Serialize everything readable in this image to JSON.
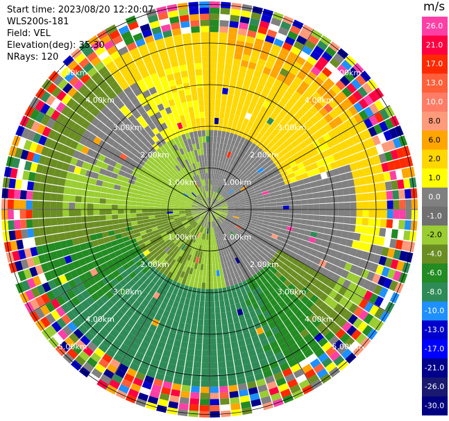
{
  "header": {
    "start_time": "Start time: 2023/08/20 12:20:07",
    "instrument": "WLS200s-181",
    "field": "Field: VEL",
    "elevation": "Elevation(deg): 35.30",
    "nrays": "NRays: 120"
  },
  "colorbar": {
    "title": "m/s",
    "levels": [
      "26.0",
      "21.0",
      "17.0",
      "13.0",
      "10.0",
      "8.0",
      "6.0",
      "2.0",
      "1.0",
      "0.0",
      "-1.0",
      "-2.0",
      "-4.0",
      "-6.0",
      "-8.0",
      "-10.0",
      "-13.0",
      "-17.0",
      "-21.0",
      "-26.0",
      "-30.0"
    ],
    "colors": [
      "#ff3fa6",
      "#ff0040",
      "#ff2a00",
      "#ff5f3a",
      "#ff7c66",
      "#ff9a7a",
      "#ffa500",
      "#ffd700",
      "#ffff00",
      "#808080",
      "#707070",
      "#9acd32",
      "#6b8e23",
      "#228b22",
      "#2e8b57",
      "#1e90ff",
      "#0000cd",
      "#0000ff",
      "#00008b",
      "#191970",
      "#000080"
    ]
  },
  "chart_data": {
    "type": "ppi",
    "field": "VEL",
    "units": "m/s",
    "n_rays": 120,
    "elevation_deg": 35.3,
    "range_rings_km": [
      1.0,
      2.0,
      3.0,
      4.0,
      5.0
    ],
    "range_ring_labels": [
      "1.00km",
      "2.00km",
      "3.00km",
      "4.00km",
      "5.00km"
    ],
    "max_range_km": 5.0,
    "grid_spokes_deg": [
      0,
      30,
      60,
      90,
      120,
      150,
      180,
      210,
      240,
      270,
      300,
      330
    ],
    "approximate_field": [
      {
        "range_km": [
          0.0,
          0.5
        ],
        "value": "mixed gray/yellow-green near center"
      },
      {
        "range_km": [
          0.5,
          2.0
        ],
        "north": 0.0,
        "east": -1.0,
        "south": -2.0,
        "west": -2.0
      },
      {
        "range_km": [
          2.0,
          3.5
        ],
        "north": 2.0,
        "east": 1.5,
        "south": -6.0,
        "west": -4.0
      },
      {
        "range_km": [
          3.5,
          4.2
        ],
        "north": 6.0,
        "east": 6.0,
        "south": -6.0,
        "west": -3.0
      },
      {
        "range_km": [
          4.2,
          5.0
        ],
        "value": "noise (random colors)"
      }
    ]
  }
}
